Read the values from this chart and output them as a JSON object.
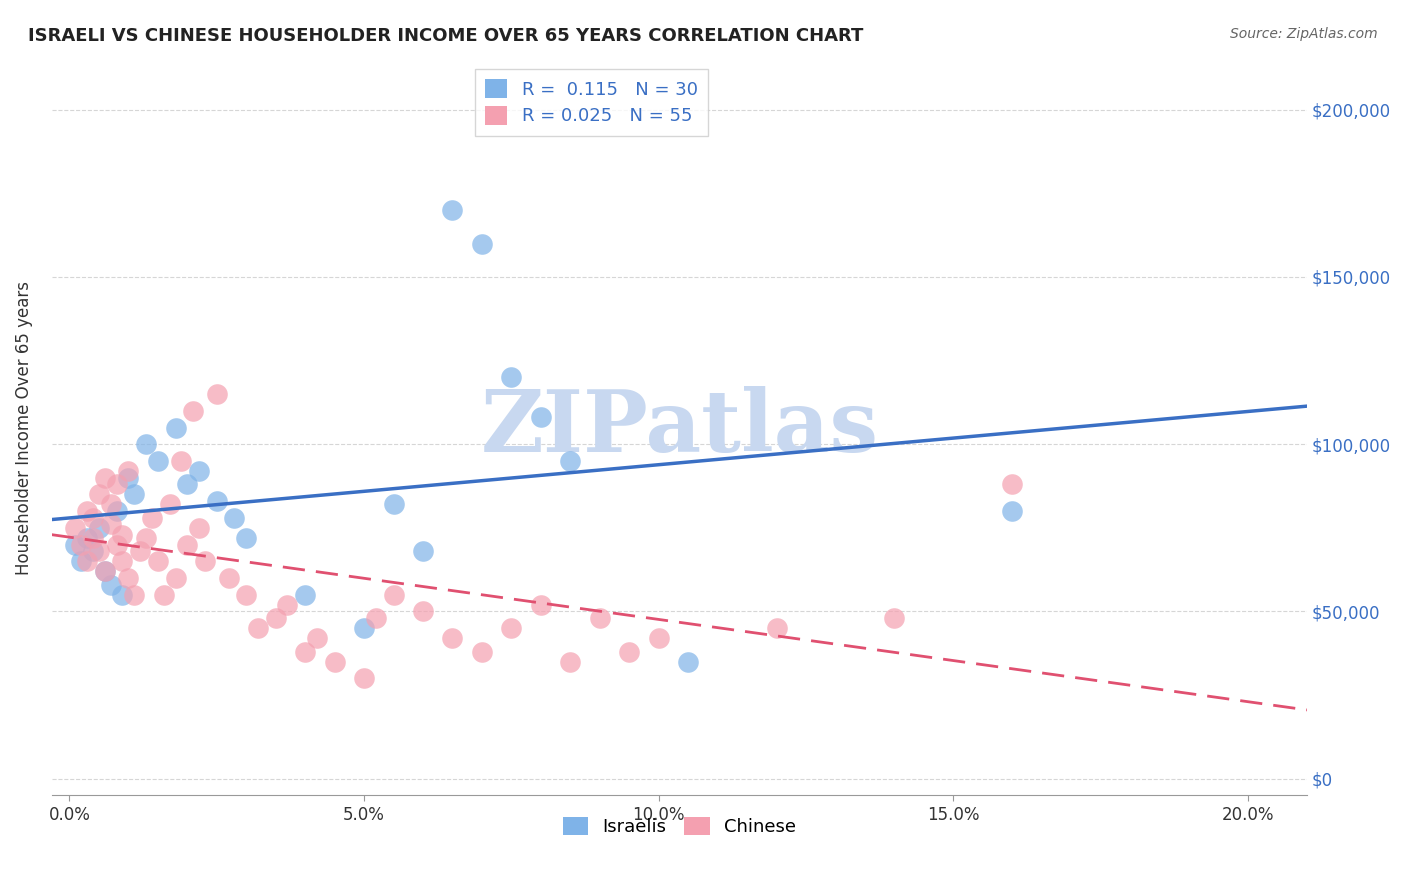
{
  "title": "ISRAELI VS CHINESE HOUSEHOLDER INCOME OVER 65 YEARS CORRELATION CHART",
  "source": "Source: ZipAtlas.com",
  "ylabel": "Householder Income Over 65 years",
  "xlabel_ticks": [
    "0.0%",
    "5.0%",
    "10.0%",
    "15.0%",
    "20.0%"
  ],
  "xlabel_vals": [
    0.0,
    0.05,
    0.1,
    0.15,
    0.2
  ],
  "ylabel_ticks": [
    "$0",
    "$50,000",
    "$100,000",
    "$150,000",
    "$200,000"
  ],
  "ylabel_vals": [
    0,
    50000,
    100000,
    150000,
    200000
  ],
  "xlim": [
    -0.003,
    0.21
  ],
  "ylim": [
    -5000,
    215000
  ],
  "israeli_R": 0.115,
  "israeli_N": 30,
  "chinese_R": 0.025,
  "chinese_N": 55,
  "israeli_color": "#7fb3e8",
  "chinese_color": "#f4a0b0",
  "israeli_line_color": "#3a6fc4",
  "chinese_line_color": "#e05070",
  "watermark": "ZIPatlas",
  "watermark_color": "#c8d8f0",
  "israeli_x": [
    0.001,
    0.002,
    0.003,
    0.004,
    0.005,
    0.006,
    0.007,
    0.008,
    0.009,
    0.01,
    0.011,
    0.013,
    0.015,
    0.018,
    0.02,
    0.022,
    0.025,
    0.028,
    0.03,
    0.04,
    0.05,
    0.055,
    0.06,
    0.065,
    0.07,
    0.075,
    0.08,
    0.085,
    0.16,
    0.105
  ],
  "israeli_y": [
    70000,
    65000,
    72000,
    68000,
    75000,
    62000,
    58000,
    80000,
    55000,
    90000,
    85000,
    100000,
    95000,
    105000,
    88000,
    92000,
    83000,
    78000,
    72000,
    55000,
    45000,
    82000,
    68000,
    170000,
    160000,
    120000,
    108000,
    95000,
    80000,
    35000
  ],
  "chinese_x": [
    0.001,
    0.002,
    0.003,
    0.003,
    0.004,
    0.004,
    0.005,
    0.005,
    0.006,
    0.006,
    0.007,
    0.007,
    0.008,
    0.008,
    0.009,
    0.009,
    0.01,
    0.01,
    0.011,
    0.012,
    0.013,
    0.014,
    0.015,
    0.016,
    0.017,
    0.018,
    0.019,
    0.02,
    0.021,
    0.022,
    0.023,
    0.025,
    0.027,
    0.03,
    0.032,
    0.035,
    0.037,
    0.04,
    0.042,
    0.045,
    0.05,
    0.052,
    0.055,
    0.06,
    0.065,
    0.07,
    0.075,
    0.08,
    0.085,
    0.09,
    0.095,
    0.1,
    0.12,
    0.14,
    0.16
  ],
  "chinese_y": [
    75000,
    70000,
    80000,
    65000,
    78000,
    72000,
    68000,
    85000,
    62000,
    90000,
    82000,
    76000,
    88000,
    70000,
    73000,
    65000,
    60000,
    92000,
    55000,
    68000,
    72000,
    78000,
    65000,
    55000,
    82000,
    60000,
    95000,
    70000,
    110000,
    75000,
    65000,
    115000,
    60000,
    55000,
    45000,
    48000,
    52000,
    38000,
    42000,
    35000,
    30000,
    48000,
    55000,
    50000,
    42000,
    38000,
    45000,
    52000,
    35000,
    48000,
    38000,
    42000,
    45000,
    48000,
    88000
  ]
}
